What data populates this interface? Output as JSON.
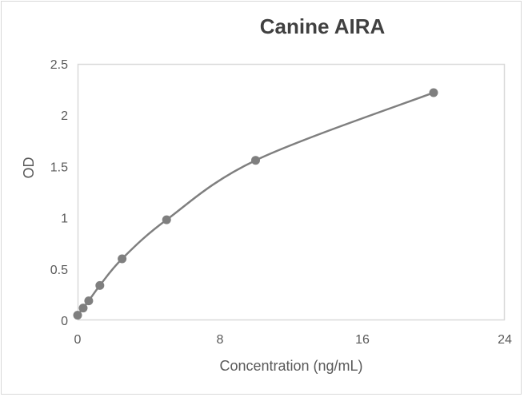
{
  "chart_data": {
    "type": "line",
    "title": "Canine AIRA",
    "xlabel": "Concentration (ng/mL)",
    "ylabel": "OD",
    "x": [
      0,
      0.3125,
      0.625,
      1.25,
      2.5,
      5,
      10,
      20
    ],
    "series": [
      {
        "name": "OD",
        "values": [
          0.05,
          0.12,
          0.19,
          0.34,
          0.6,
          0.98,
          1.56,
          2.22
        ],
        "color": "#7f7f7f",
        "marker": "circle",
        "smooth": true
      }
    ],
    "xlim": [
      0,
      24
    ],
    "ylim": [
      0,
      2.5
    ],
    "xticks": [
      "0",
      "8",
      "16",
      "24"
    ],
    "yticks": [
      "0",
      "0.5",
      "1",
      "1.5",
      "2",
      "2.5"
    ],
    "grid": false,
    "legend": "none"
  },
  "colors": {
    "series": "#7f7f7f",
    "border": "#d9d9d9",
    "title": "#404040",
    "tick_text": "#595959"
  }
}
